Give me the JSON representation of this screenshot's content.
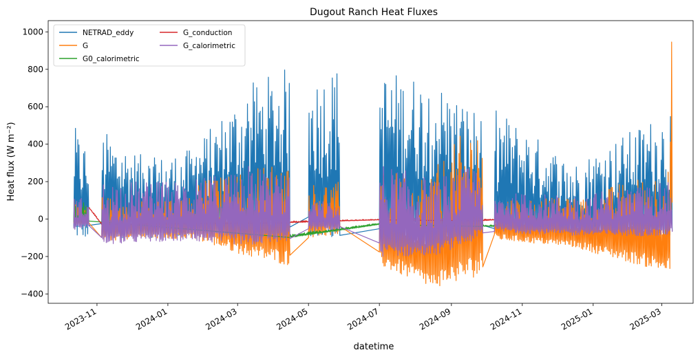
{
  "chart_data": {
    "type": "line",
    "title": "Dugout Ranch Heat Fluxes",
    "xlabel": "datetime",
    "ylabel": "Heat flux (W m⁻²)",
    "x_axis": {
      "type": "date",
      "range": [
        "2023-09-20",
        "2025-03-28"
      ],
      "ticks": [
        "2023-11",
        "2024-01",
        "2024-03",
        "2024-05",
        "2024-07",
        "2024-09",
        "2024-11",
        "2025-01",
        "2025-03"
      ]
    },
    "y_axis": {
      "range": [
        -450,
        1060
      ],
      "ticks": [
        -400,
        -200,
        0,
        200,
        400,
        600,
        800,
        1000
      ]
    },
    "grid": false,
    "legend": {
      "placement": "top-left",
      "columns": 2
    },
    "series": [
      {
        "name": "NETRAD_eddy",
        "color": "#1f77b4",
        "segments": [
          {
            "x": [
              "2023-10-12",
              "2023-10-25"
            ],
            "y_min": [
              -100,
              -100
            ],
            "y_max": [
              500,
              380
            ]
          },
          {
            "x": [
              "2023-11-05",
              "2023-12-15"
            ],
            "y_min": [
              -100,
              -100
            ],
            "y_max": [
              480,
              320
            ]
          },
          {
            "x": [
              "2023-12-15",
              "2024-01-25"
            ],
            "y_min": [
              -100,
              -90
            ],
            "y_max": [
              320,
              380
            ]
          },
          {
            "x": [
              "2024-01-25",
              "2024-03-10"
            ],
            "y_min": [
              -90,
              -100
            ],
            "y_max": [
              400,
              720
            ]
          },
          {
            "x": [
              "2024-03-10",
              "2024-04-15"
            ],
            "y_min": [
              -100,
              -100
            ],
            "y_max": [
              720,
              820
            ]
          },
          {
            "x": [
              "2024-05-01",
              "2024-05-28"
            ],
            "y_min": [
              -100,
              -100
            ],
            "y_max": [
              760,
              830
            ]
          },
          {
            "x": [
              "2024-07-01",
              "2024-08-15"
            ],
            "y_min": [
              -100,
              -120
            ],
            "y_max": [
              800,
              760
            ]
          },
          {
            "x": [
              "2024-08-15",
              "2024-09-28"
            ],
            "y_min": [
              -120,
              -100
            ],
            "y_max": [
              760,
              560
            ]
          },
          {
            "x": [
              "2024-10-08",
              "2024-12-15"
            ],
            "y_min": [
              -100,
              -100
            ],
            "y_max": [
              600,
              300
            ]
          },
          {
            "x": [
              "2024-12-15",
              "2025-03-10"
            ],
            "y_min": [
              -100,
              -90
            ],
            "y_max": [
              300,
              600
            ]
          }
        ]
      },
      {
        "name": "G",
        "color": "#ff7f0e",
        "segments": [
          {
            "x": [
              "2023-10-12",
              "2023-10-25"
            ],
            "y_min": [
              -40,
              -30
            ],
            "y_max": [
              80,
              70
            ]
          },
          {
            "x": [
              "2023-11-05",
              "2023-12-15"
            ],
            "y_min": [
              -120,
              -100
            ],
            "y_max": [
              120,
              100
            ]
          },
          {
            "x": [
              "2023-12-15",
              "2024-01-25"
            ],
            "y_min": [
              -100,
              -110
            ],
            "y_max": [
              110,
              120
            ]
          },
          {
            "x": [
              "2024-01-25",
              "2024-03-10"
            ],
            "y_min": [
              -110,
              -200
            ],
            "y_max": [
              200,
              260
            ]
          },
          {
            "x": [
              "2024-03-10",
              "2024-04-15"
            ],
            "y_min": [
              -200,
              -250
            ],
            "y_max": [
              260,
              340
            ]
          },
          {
            "x": [
              "2024-05-01",
              "2024-05-28"
            ],
            "y_min": [
              -100,
              -80
            ],
            "y_max": [
              190,
              200
            ]
          },
          {
            "x": [
              "2024-07-01",
              "2024-08-15"
            ],
            "y_min": [
              -250,
              -370
            ],
            "y_max": [
              260,
              250
            ]
          },
          {
            "x": [
              "2024-08-15",
              "2024-09-28"
            ],
            "y_min": [
              -370,
              -300
            ],
            "y_max": [
              250,
              600
            ]
          },
          {
            "x": [
              "2024-10-08",
              "2024-12-15"
            ],
            "y_min": [
              -110,
              -150
            ],
            "y_max": [
              120,
              110
            ]
          },
          {
            "x": [
              "2024-12-15",
              "2025-03-08"
            ],
            "y_min": [
              -150,
              -290
            ],
            "y_max": [
              110,
              280
            ]
          },
          {
            "x": [
              "2025-03-08",
              "2025-03-10"
            ],
            "y_min": [
              -150,
              0
            ],
            "y_max": [
              960,
              995
            ]
          }
        ]
      },
      {
        "name": "G0_calorimetric",
        "color": "#2ca02c",
        "segments": [
          {
            "x": [
              "2023-10-12",
              "2023-10-25"
            ],
            "y_min": [
              -30,
              -20
            ],
            "y_max": [
              100,
              90
            ]
          },
          {
            "x": [
              "2024-04-15",
              "2024-07-01"
            ],
            "y_min": [
              -100,
              -30
            ],
            "y_max": [
              -80,
              -20
            ]
          },
          {
            "x": [
              "2024-09-28",
              "2024-10-08"
            ],
            "y_min": [
              -40,
              -40
            ],
            "y_max": [
              -30,
              -30
            ]
          }
        ]
      },
      {
        "name": "G_conduction",
        "color": "#d62728",
        "segments": [
          {
            "x": [
              "2023-10-25",
              "2023-11-05"
            ],
            "y_min": [
              60,
              -30
            ],
            "y_max": [
              70,
              -20
            ]
          },
          {
            "x": [
              "2024-04-15",
              "2024-07-01"
            ],
            "y_min": [
              -20,
              -5
            ],
            "y_max": [
              -10,
              0
            ]
          },
          {
            "x": [
              "2024-09-28",
              "2024-10-08"
            ],
            "y_min": [
              -10,
              -5
            ],
            "y_max": [
              0,
              0
            ]
          }
        ]
      },
      {
        "name": "G_calorimetric",
        "color": "#9467bd",
        "segments": [
          {
            "x": [
              "2023-10-12",
              "2023-10-25"
            ],
            "y_min": [
              -60,
              -50
            ],
            "y_max": [
              120,
              110
            ]
          },
          {
            "x": [
              "2023-11-05",
              "2023-12-15"
            ],
            "y_min": [
              -140,
              -120
            ],
            "y_max": [
              210,
              200
            ]
          },
          {
            "x": [
              "2023-12-15",
              "2024-01-25"
            ],
            "y_min": [
              -120,
              -120
            ],
            "y_max": [
              200,
              210
            ]
          },
          {
            "x": [
              "2024-01-25",
              "2024-03-10"
            ],
            "y_min": [
              -120,
              -140
            ],
            "y_max": [
              210,
              290
            ]
          },
          {
            "x": [
              "2024-03-10",
              "2024-04-15"
            ],
            "y_min": [
              -140,
              -120
            ],
            "y_max": [
              290,
              250
            ]
          },
          {
            "x": [
              "2024-05-01",
              "2024-05-28"
            ],
            "y_min": [
              -60,
              -60
            ],
            "y_max": [
              100,
              90
            ]
          },
          {
            "x": [
              "2024-07-01",
              "2024-08-15"
            ],
            "y_min": [
              -200,
              -200
            ],
            "y_max": [
              300,
              220
            ]
          },
          {
            "x": [
              "2024-08-15",
              "2024-09-28"
            ],
            "y_min": [
              -200,
              -100
            ],
            "y_max": [
              220,
              300
            ]
          },
          {
            "x": [
              "2024-10-08",
              "2024-12-15"
            ],
            "y_min": [
              -70,
              -90
            ],
            "y_max": [
              140,
              130
            ]
          },
          {
            "x": [
              "2024-12-15",
              "2025-03-10"
            ],
            "y_min": [
              -90,
              -90
            ],
            "y_max": [
              130,
              200
            ]
          }
        ]
      }
    ]
  }
}
